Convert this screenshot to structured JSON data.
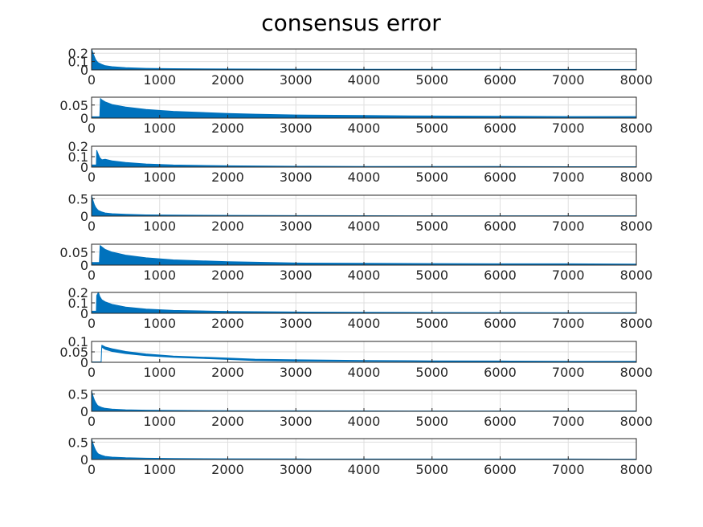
{
  "chart_data": {
    "type": "line",
    "title": "consensus error",
    "grid": true,
    "line_color": "#0072BD",
    "x_ticks": [
      0,
      1000,
      2000,
      3000,
      4000,
      5000,
      6000,
      7000,
      8000
    ],
    "x_tick_labels": [
      "0",
      "1000",
      "2000",
      "3000",
      "4000",
      "5000",
      "6000",
      "7000",
      "8000"
    ],
    "subplots": [
      {
        "xlim": [
          0,
          8000
        ],
        "ylim": [
          0,
          0.25
        ],
        "y_ticks": [
          0,
          0.1,
          0.2
        ],
        "y_tick_labels": [
          "0",
          "0.1",
          "0.2"
        ],
        "x": [
          0,
          5,
          20,
          40,
          60,
          80,
          100,
          150,
          200,
          300,
          500,
          800,
          1200,
          2000,
          3000,
          4000,
          5000,
          6000,
          7000,
          8000
        ],
        "upper": [
          0.25,
          0.24,
          0.2,
          0.16,
          0.12,
          0.1,
          0.085,
          0.065,
          0.05,
          0.038,
          0.026,
          0.018,
          0.014,
          0.011,
          0.009,
          0.008,
          0.007,
          0.007,
          0.006,
          0.006
        ],
        "lower": [
          0,
          0,
          0,
          0,
          0,
          0,
          0,
          0,
          0,
          0.001,
          0.001,
          0.001,
          0.001,
          0.001,
          0.001,
          0.001,
          0.001,
          0.001,
          0.001,
          0.001
        ]
      },
      {
        "xlim": [
          0,
          8000
        ],
        "ylim": [
          0,
          0.08
        ],
        "y_ticks": [
          0,
          0.05
        ],
        "y_tick_labels": [
          "0",
          "0.05"
        ],
        "x": [
          0,
          120,
          130,
          150,
          200,
          300,
          500,
          800,
          1200,
          2000,
          2400,
          3000,
          4000,
          5000,
          6000,
          7000,
          8000
        ],
        "upper": [
          0.005,
          0.005,
          0.075,
          0.07,
          0.062,
          0.052,
          0.042,
          0.033,
          0.026,
          0.018,
          0.015,
          0.012,
          0.01,
          0.008,
          0.007,
          0.006,
          0.006
        ],
        "lower": [
          0,
          0,
          0,
          0,
          0,
          0,
          0,
          0,
          0,
          0,
          0,
          0,
          0,
          0,
          0,
          0,
          0
        ]
      },
      {
        "xlim": [
          0,
          8000
        ],
        "ylim": [
          0,
          0.2
        ],
        "y_ticks": [
          0,
          0.1,
          0.2
        ],
        "y_tick_labels": [
          "0",
          "0.1",
          "0.2"
        ],
        "x": [
          0,
          70,
          75,
          100,
          120,
          150,
          200,
          300,
          500,
          800,
          1200,
          2000,
          3000,
          4000,
          5000,
          6000,
          7000,
          8000
        ],
        "upper": [
          0.02,
          0.02,
          0.16,
          0.12,
          0.09,
          0.07,
          0.075,
          0.06,
          0.045,
          0.03,
          0.02,
          0.012,
          0.008,
          0.006,
          0.005,
          0.005,
          0.004,
          0.004
        ],
        "lower": [
          0,
          0,
          0,
          0,
          0,
          0,
          0,
          0,
          0,
          0,
          0,
          0,
          0,
          0,
          0,
          0,
          0,
          0
        ]
      },
      {
        "xlim": [
          0,
          8000
        ],
        "ylim": [
          0,
          0.6
        ],
        "y_ticks": [
          0,
          0.5
        ],
        "y_tick_labels": [
          "0",
          "0.5"
        ],
        "x": [
          0,
          5,
          20,
          40,
          60,
          80,
          100,
          150,
          200,
          300,
          500,
          800,
          1200,
          2000,
          3000,
          4000,
          5000,
          6000,
          7000,
          8000
        ],
        "upper": [
          0.6,
          0.55,
          0.45,
          0.33,
          0.25,
          0.2,
          0.16,
          0.12,
          0.09,
          0.07,
          0.05,
          0.035,
          0.028,
          0.02,
          0.015,
          0.012,
          0.01,
          0.01,
          0.009,
          0.009
        ],
        "lower": [
          0,
          0,
          0,
          0,
          0,
          0,
          0,
          0,
          0,
          0,
          0,
          0,
          0,
          0,
          0,
          0,
          0,
          0,
          0,
          0
        ]
      },
      {
        "xlim": [
          0,
          8000
        ],
        "ylim": [
          0,
          0.08
        ],
        "y_ticks": [
          0,
          0.05
        ],
        "y_tick_labels": [
          "0",
          "0.05"
        ],
        "x": [
          0,
          115,
          125,
          150,
          200,
          300,
          500,
          800,
          1200,
          2000,
          2400,
          3000,
          4000,
          5000,
          6000,
          7000,
          8000
        ],
        "upper": [
          0.01,
          0.01,
          0.075,
          0.07,
          0.06,
          0.05,
          0.038,
          0.028,
          0.02,
          0.013,
          0.011,
          0.008,
          0.007,
          0.006,
          0.005,
          0.005,
          0.004
        ],
        "lower": [
          0,
          0,
          0,
          0,
          0,
          0,
          0,
          0,
          0,
          0,
          0,
          0,
          0,
          0,
          0,
          0,
          0
        ]
      },
      {
        "xlim": [
          0,
          8000
        ],
        "ylim": [
          0,
          0.2
        ],
        "y_ticks": [
          0,
          0.1,
          0.2
        ],
        "y_tick_labels": [
          "0",
          "0.1",
          "0.2"
        ],
        "x": [
          0,
          70,
          75,
          100,
          120,
          150,
          200,
          300,
          500,
          800,
          1200,
          2000,
          3000,
          4000,
          5000,
          6000,
          7000,
          8000
        ],
        "upper": [
          0.02,
          0.02,
          0.17,
          0.2,
          0.16,
          0.13,
          0.11,
          0.085,
          0.06,
          0.04,
          0.028,
          0.018,
          0.012,
          0.009,
          0.008,
          0.007,
          0.006,
          0.006
        ],
        "lower": [
          0,
          0,
          0,
          0,
          0,
          0,
          0,
          0,
          0,
          0,
          0,
          0,
          0,
          0,
          0,
          0,
          0,
          0
        ]
      },
      {
        "xlim": [
          0,
          8000
        ],
        "ylim": [
          0,
          0.1
        ],
        "y_ticks": [
          0,
          0.05,
          0.1
        ],
        "y_tick_labels": [
          "0",
          "0.05",
          "0.1"
        ],
        "x": [
          0,
          140,
          150,
          200,
          300,
          500,
          800,
          1200,
          2000,
          2400,
          3000,
          4000,
          5000,
          6000,
          7000,
          8000
        ],
        "upper": [
          0.002,
          0.002,
          0.082,
          0.074,
          0.065,
          0.052,
          0.04,
          0.03,
          0.02,
          0.015,
          0.012,
          0.009,
          0.007,
          0.006,
          0.005,
          0.005
        ],
        "lower": [
          0,
          0,
          0.07,
          0.06,
          0.05,
          0.04,
          0.03,
          0.022,
          0.012,
          0.006,
          0.004,
          0.003,
          0.002,
          0.002,
          0.002,
          0.002
        ]
      },
      {
        "xlim": [
          0,
          8000
        ],
        "ylim": [
          0,
          0.6
        ],
        "y_ticks": [
          0,
          0.5
        ],
        "y_tick_labels": [
          "0",
          "0.5"
        ],
        "x": [
          0,
          5,
          20,
          40,
          60,
          80,
          100,
          150,
          200,
          300,
          500,
          800,
          1200,
          2000,
          3000,
          4000,
          5000,
          6000,
          7000,
          8000
        ],
        "upper": [
          0.6,
          0.55,
          0.44,
          0.33,
          0.25,
          0.19,
          0.15,
          0.11,
          0.085,
          0.065,
          0.045,
          0.033,
          0.025,
          0.019,
          0.015,
          0.012,
          0.01,
          0.01,
          0.009,
          0.009
        ],
        "lower": [
          0,
          0,
          0,
          0,
          0,
          0,
          0,
          0,
          0,
          0,
          0,
          0,
          0,
          0,
          0,
          0,
          0,
          0,
          0,
          0
        ]
      },
      {
        "xlim": [
          0,
          8000
        ],
        "ylim": [
          0,
          0.6
        ],
        "y_ticks": [
          0,
          0.5
        ],
        "y_tick_labels": [
          "0",
          "0.5"
        ],
        "x": [
          0,
          5,
          20,
          40,
          60,
          80,
          100,
          150,
          200,
          300,
          500,
          800,
          1200,
          2000,
          3000,
          4000,
          5000,
          6000,
          7000,
          8000
        ],
        "upper": [
          0.6,
          0.56,
          0.46,
          0.35,
          0.26,
          0.2,
          0.16,
          0.12,
          0.09,
          0.07,
          0.05,
          0.036,
          0.028,
          0.021,
          0.017,
          0.015,
          0.014,
          0.013,
          0.013,
          0.012
        ],
        "lower": [
          0,
          0,
          0,
          0,
          0,
          0,
          0,
          0,
          0,
          0,
          0,
          0,
          0,
          0,
          0,
          0,
          0,
          0,
          0,
          0
        ]
      }
    ]
  }
}
